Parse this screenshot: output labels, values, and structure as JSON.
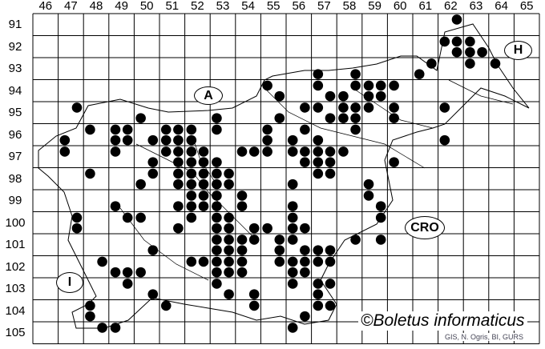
{
  "map": {
    "columns": [
      "46",
      "47",
      "48",
      "49",
      "50",
      "51",
      "52",
      "53",
      "54",
      "55",
      "56",
      "57",
      "58",
      "59",
      "60",
      "61",
      "62",
      "63",
      "64",
      "65"
    ],
    "rows": [
      "91",
      "92",
      "93",
      "94",
      "95",
      "96",
      "97",
      "98",
      "99",
      "100",
      "101",
      "102",
      "103",
      "104",
      "105"
    ],
    "country_labels": {
      "austria": "A",
      "hungary": "H",
      "croatia": "CRO",
      "italy": "I"
    },
    "copyright": "©Boletus informaticus",
    "credit": "GIS, N. Ogris, BI, GURS",
    "dot_color": "#000000",
    "records_col_row_quadrant": [
      [
        62,
        91,
        2
      ],
      [
        62,
        92,
        1
      ],
      [
        62,
        92,
        2
      ],
      [
        63,
        92,
        1
      ],
      [
        62,
        92,
        4
      ],
      [
        63,
        92,
        3
      ],
      [
        63,
        92,
        4
      ],
      [
        63,
        93,
        1
      ],
      [
        64,
        93,
        1
      ],
      [
        61,
        93,
        2
      ],
      [
        61,
        93,
        3
      ],
      [
        57,
        93,
        3
      ],
      [
        58,
        93,
        4
      ],
      [
        57,
        94,
        1
      ],
      [
        58,
        94,
        2
      ],
      [
        59,
        94,
        1
      ],
      [
        59,
        94,
        2
      ],
      [
        60,
        94,
        1
      ],
      [
        57,
        94,
        4
      ],
      [
        58,
        94,
        3
      ],
      [
        59,
        94,
        3
      ],
      [
        59,
        94,
        4
      ],
      [
        55,
        94,
        4
      ],
      [
        55,
        94,
        1
      ],
      [
        56,
        95,
        2
      ],
      [
        57,
        95,
        1
      ],
      [
        58,
        95,
        1
      ],
      [
        58,
        95,
        2
      ],
      [
        59,
        95,
        1
      ],
      [
        60,
        95,
        1
      ],
      [
        62,
        95,
        1
      ],
      [
        55,
        95,
        4
      ],
      [
        57,
        95,
        4
      ],
      [
        58,
        95,
        3
      ],
      [
        58,
        95,
        4
      ],
      [
        60,
        95,
        3
      ],
      [
        47,
        95,
        2
      ],
      [
        50,
        95,
        3
      ],
      [
        53,
        95,
        3
      ],
      [
        56,
        96,
        2
      ],
      [
        58,
        96,
        2
      ],
      [
        56,
        96,
        3
      ],
      [
        57,
        96,
        3
      ],
      [
        62,
        96,
        3
      ],
      [
        48,
        96,
        1
      ],
      [
        49,
        96,
        1
      ],
      [
        49,
        96,
        2
      ],
      [
        51,
        96,
        1
      ],
      [
        51,
        96,
        2
      ],
      [
        52,
        96,
        1
      ],
      [
        53,
        96,
        1
      ],
      [
        55,
        96,
        1
      ],
      [
        47,
        96,
        3
      ],
      [
        49,
        96,
        3
      ],
      [
        49,
        96,
        4
      ],
      [
        50,
        96,
        4
      ],
      [
        51,
        96,
        3
      ],
      [
        51,
        96,
        4
      ],
      [
        52,
        96,
        3
      ],
      [
        55,
        96,
        3
      ],
      [
        47,
        97,
        1
      ],
      [
        49,
        97,
        1
      ],
      [
        51,
        97,
        1
      ],
      [
        51,
        97,
        2
      ],
      [
        52,
        97,
        1
      ],
      [
        52,
        97,
        2
      ],
      [
        54,
        97,
        1
      ],
      [
        54,
        97,
        2
      ],
      [
        55,
        97,
        1
      ],
      [
        50,
        97,
        4
      ],
      [
        51,
        97,
        4
      ],
      [
        52,
        97,
        3
      ],
      [
        52,
        97,
        4
      ],
      [
        53,
        97,
        3
      ],
      [
        56,
        97,
        1
      ],
      [
        56,
        97,
        2
      ],
      [
        57,
        97,
        1
      ],
      [
        57,
        97,
        2
      ],
      [
        58,
        97,
        1
      ],
      [
        56,
        97,
        4
      ],
      [
        57,
        97,
        3
      ],
      [
        57,
        97,
        4
      ],
      [
        60,
        97,
        3
      ],
      [
        48,
        98,
        1
      ],
      [
        50,
        98,
        2
      ],
      [
        51,
        98,
        2
      ],
      [
        52,
        98,
        1
      ],
      [
        52,
        98,
        2
      ],
      [
        53,
        98,
        1
      ],
      [
        53,
        98,
        2
      ],
      [
        50,
        98,
        3
      ],
      [
        51,
        98,
        4
      ],
      [
        52,
        98,
        3
      ],
      [
        52,
        98,
        4
      ],
      [
        53,
        98,
        3
      ],
      [
        53,
        98,
        4
      ],
      [
        57,
        98,
        1
      ],
      [
        57,
        98,
        2
      ],
      [
        56,
        98,
        3
      ],
      [
        59,
        98,
        3
      ],
      [
        52,
        99,
        1
      ],
      [
        52,
        99,
        2
      ],
      [
        53,
        99,
        1
      ],
      [
        54,
        99,
        1
      ],
      [
        49,
        99,
        3
      ],
      [
        51,
        99,
        4
      ],
      [
        52,
        99,
        3
      ],
      [
        52,
        99,
        4
      ],
      [
        53,
        99,
        3
      ],
      [
        54,
        99,
        3
      ],
      [
        59,
        99,
        1
      ],
      [
        56,
        99,
        3
      ],
      [
        59,
        99,
        4
      ],
      [
        47,
        100,
        2
      ],
      [
        49,
        100,
        2
      ],
      [
        50,
        100,
        1
      ],
      [
        52,
        100,
        1
      ],
      [
        53,
        100,
        1
      ],
      [
        53,
        100,
        2
      ],
      [
        47,
        100,
        4
      ],
      [
        51,
        100,
        4
      ],
      [
        53,
        100,
        3
      ],
      [
        53,
        100,
        4
      ],
      [
        54,
        100,
        4
      ],
      [
        55,
        100,
        3
      ],
      [
        56,
        100,
        1
      ],
      [
        59,
        100,
        2
      ],
      [
        56,
        100,
        3
      ],
      [
        56,
        100,
        4
      ],
      [
        53,
        101,
        1
      ],
      [
        53,
        101,
        2
      ],
      [
        54,
        101,
        1
      ],
      [
        54,
        101,
        2
      ],
      [
        50,
        101,
        4
      ],
      [
        53,
        101,
        3
      ],
      [
        53,
        101,
        4
      ],
      [
        54,
        101,
        3
      ],
      [
        55,
        101,
        2
      ],
      [
        56,
        101,
        1
      ],
      [
        58,
        101,
        2
      ],
      [
        59,
        101,
        2
      ],
      [
        55,
        101,
        4
      ],
      [
        56,
        101,
        4
      ],
      [
        57,
        101,
        3
      ],
      [
        57,
        101,
        4
      ],
      [
        48,
        102,
        2
      ],
      [
        52,
        102,
        1
      ],
      [
        52,
        102,
        2
      ],
      [
        53,
        102,
        1
      ],
      [
        53,
        102,
        2
      ],
      [
        54,
        102,
        1
      ],
      [
        49,
        102,
        3
      ],
      [
        49,
        102,
        4
      ],
      [
        50,
        102,
        3
      ],
      [
        53,
        102,
        3
      ],
      [
        53,
        102,
        4
      ],
      [
        54,
        102,
        3
      ],
      [
        55,
        102,
        2
      ],
      [
        56,
        102,
        1
      ],
      [
        56,
        102,
        2
      ],
      [
        57,
        102,
        1
      ],
      [
        57,
        102,
        2
      ],
      [
        56,
        102,
        3
      ],
      [
        56,
        102,
        4
      ],
      [
        49,
        103,
        2
      ],
      [
        53,
        103,
        1
      ],
      [
        50,
        103,
        4
      ],
      [
        53,
        103,
        4
      ],
      [
        54,
        103,
        4
      ],
      [
        56,
        103,
        1
      ],
      [
        57,
        103,
        1
      ],
      [
        57,
        103,
        2
      ],
      [
        57,
        103,
        3
      ],
      [
        48,
        104,
        1
      ],
      [
        51,
        104,
        1
      ],
      [
        54,
        104,
        2
      ],
      [
        48,
        104,
        3
      ],
      [
        57,
        104,
        1
      ],
      [
        57,
        104,
        2
      ],
      [
        56,
        104,
        4
      ],
      [
        48,
        105,
        2
      ],
      [
        49,
        105,
        1
      ],
      [
        56,
        105,
        1
      ]
    ]
  }
}
